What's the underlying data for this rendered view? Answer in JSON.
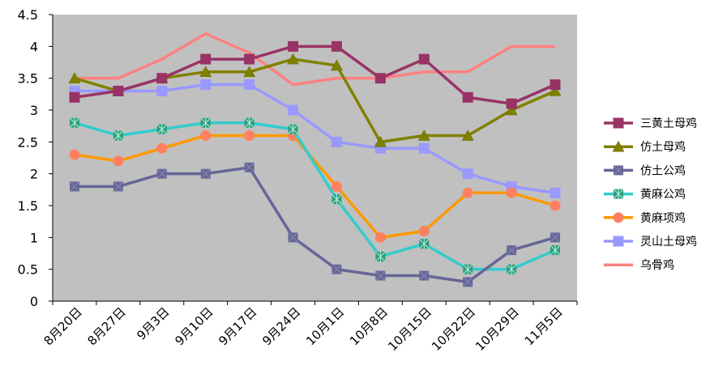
{
  "chart_data": {
    "type": "line",
    "title": "",
    "xlabel": "",
    "ylabel": "",
    "categories": [
      "8月20日",
      "8月27日",
      "9月3日",
      "9月10日",
      "9月17日",
      "9月24日",
      "10月1日",
      "10月8日",
      "10月15日",
      "10月22日",
      "10月29日",
      "11月5日"
    ],
    "ylim": [
      0,
      4.5
    ],
    "yticks": [
      "0",
      "0.5",
      "1",
      "1.5",
      "2",
      "2.5",
      "3",
      "3.5",
      "4",
      "4.5"
    ],
    "grid": "none",
    "plot_background": "#c0c0c0",
    "legend_position": "right",
    "series": [
      {
        "name": "三黄土母鸡",
        "color": "#993366",
        "marker": "square",
        "values": [
          3.2,
          3.3,
          3.5,
          3.8,
          3.8,
          4.0,
          4.0,
          3.5,
          3.8,
          3.2,
          3.1,
          3.4
        ]
      },
      {
        "name": "仿土母鸡",
        "color": "#808000",
        "marker": "triangle",
        "values": [
          3.5,
          3.3,
          3.5,
          3.6,
          3.6,
          3.8,
          3.7,
          2.5,
          2.6,
          2.6,
          3.0,
          3.3
        ]
      },
      {
        "name": "仿土公鸡",
        "color": "#666699",
        "marker": "x",
        "values": [
          1.8,
          1.8,
          2.0,
          2.0,
          2.1,
          1.0,
          0.5,
          0.4,
          0.4,
          0.3,
          0.8,
          1.0
        ]
      },
      {
        "name": "黄麻公鸡",
        "color": "#33cccc",
        "marker": "star",
        "values": [
          2.8,
          2.6,
          2.7,
          2.8,
          2.8,
          2.7,
          1.6,
          0.7,
          0.9,
          0.5,
          0.5,
          0.8
        ]
      },
      {
        "name": "黄麻项鸡",
        "color": "#ff9900",
        "marker": "circle",
        "values": [
          2.3,
          2.2,
          2.4,
          2.6,
          2.6,
          2.6,
          1.8,
          1.0,
          1.1,
          1.7,
          1.7,
          1.5
        ]
      },
      {
        "name": "灵山土母鸡",
        "color": "#9999ff",
        "marker": "square",
        "values": [
          3.3,
          3.3,
          3.3,
          3.4,
          3.4,
          3.0,
          2.5,
          2.4,
          2.4,
          2.0,
          1.8,
          1.7
        ]
      },
      {
        "name": "乌骨鸡",
        "color": "#ff8080",
        "marker": "none",
        "values": [
          3.5,
          3.5,
          3.8,
          4.2,
          3.9,
          3.4,
          3.5,
          3.5,
          3.6,
          3.6,
          4.0,
          4.0
        ]
      }
    ]
  }
}
